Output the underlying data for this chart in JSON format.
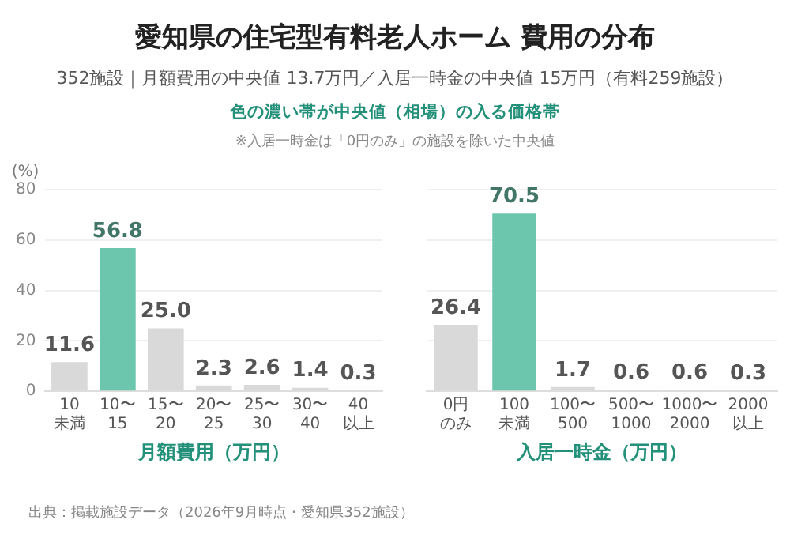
{
  "chart_data": [
    {
      "type": "bar",
      "title": "愛知県の住宅型有料老人ホーム 費用の分布",
      "subtitle": "352施設｜月額費用の中央値 13.7万円／入居一時金の中央値 15万円（有料259施設）",
      "annotations": [
        "色の濃い帯が中央値（相場）の入る価格帯",
        "※入居一時金は「0円のみ」の施設を除いた中央値",
        "出典：掲載施設データ（2026年9月時点・愛知県352施設）"
      ],
      "xlabel": "月額費用（万円）",
      "ylabel": "(%)",
      "categories": [
        "10\n未満",
        "10〜\n15",
        "15〜\n20",
        "20〜\n25",
        "25〜\n30",
        "30〜\n40",
        "40\n以上"
      ],
      "values": [
        11.6,
        56.8,
        25.0,
        2.3,
        2.6,
        1.4,
        0.3
      ],
      "colors": [
        "#d9d9d9",
        "#6cc5ad",
        "#d9d9d9",
        "#d9d9d9",
        "#d9d9d9",
        "#d9d9d9",
        "#d9d9d9"
      ],
      "value_labels": [
        "11.6",
        "56.8",
        "25.0",
        "2.3",
        "2.6",
        "1.4",
        "0.3"
      ],
      "ylim": [
        0,
        80
      ],
      "yticks": [
        0,
        20,
        40,
        60,
        80
      ],
      "grid": "y"
    },
    {
      "type": "bar",
      "xlabel": "入居一時金（万円）",
      "categories": [
        "0円のみ",
        "100\n未満",
        "100〜\n500",
        "500〜\n1000",
        "1000〜\n2000",
        "2000\n以上"
      ],
      "values": [
        26.4,
        70.5,
        1.7,
        0.6,
        0.6,
        0.3
      ],
      "colors": [
        "#d9d9d9",
        "#6cc5ad",
        "#d9d9d9",
        "#d9d9d9",
        "#d9d9d9",
        "#d9d9d9"
      ],
      "data_labels": true,
      "ylim": [
        0,
        80
      ],
      "yticks": [
        0,
        20,
        40,
        60,
        80
      ],
      "grid": "y",
      "tick_labels": "x"
    }
  ]
}
